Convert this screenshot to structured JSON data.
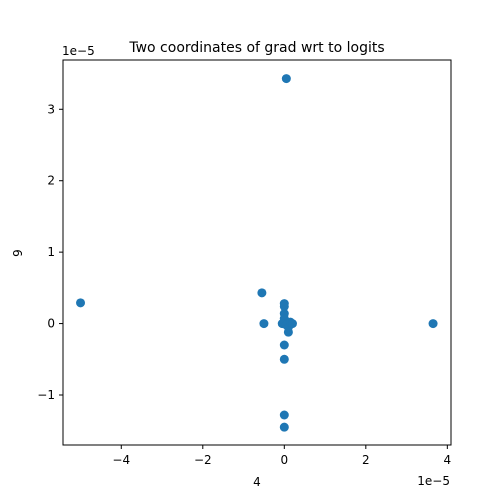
{
  "chart_data": {
    "type": "scatter",
    "title": "Two coordinates of grad wrt to logits",
    "xlabel": "4",
    "ylabel": "9",
    "x_offset_text": "1e−5",
    "y_offset_text": "1e−5",
    "scale": 1e-05,
    "xlim": [
      -5.43,
      4.09
    ],
    "ylim": [
      -1.7,
      3.69
    ],
    "xticks": [
      -4,
      -2,
      0,
      2,
      4
    ],
    "xtick_labels": [
      "−4",
      "−2",
      "0",
      "2",
      "4"
    ],
    "yticks": [
      -1,
      0,
      1,
      2,
      3
    ],
    "ytick_labels": [
      "−1",
      "0",
      "1",
      "2",
      "3"
    ],
    "grid": false,
    "marker_color": "#1f77b4",
    "points": [
      {
        "x": 0.05,
        "y": 3.43
      },
      {
        "x": -5.0,
        "y": 0.29
      },
      {
        "x": 3.65,
        "y": 0.0
      },
      {
        "x": -0.55,
        "y": 0.43
      },
      {
        "x": -0.5,
        "y": 0.0
      },
      {
        "x": 0.0,
        "y": 0.28
      },
      {
        "x": 0.0,
        "y": 0.24
      },
      {
        "x": 0.0,
        "y": 0.14
      },
      {
        "x": 0.0,
        "y": 0.07
      },
      {
        "x": -0.05,
        "y": 0.0
      },
      {
        "x": 0.05,
        "y": -0.02
      },
      {
        "x": 0.1,
        "y": -0.05
      },
      {
        "x": 0.15,
        "y": 0.02
      },
      {
        "x": 0.2,
        "y": 0.0
      },
      {
        "x": 0.1,
        "y": -0.12
      },
      {
        "x": 0.0,
        "y": -0.3
      },
      {
        "x": 0.0,
        "y": -0.5
      },
      {
        "x": 0.0,
        "y": -1.28
      },
      {
        "x": 0.0,
        "y": -1.45
      }
    ]
  }
}
